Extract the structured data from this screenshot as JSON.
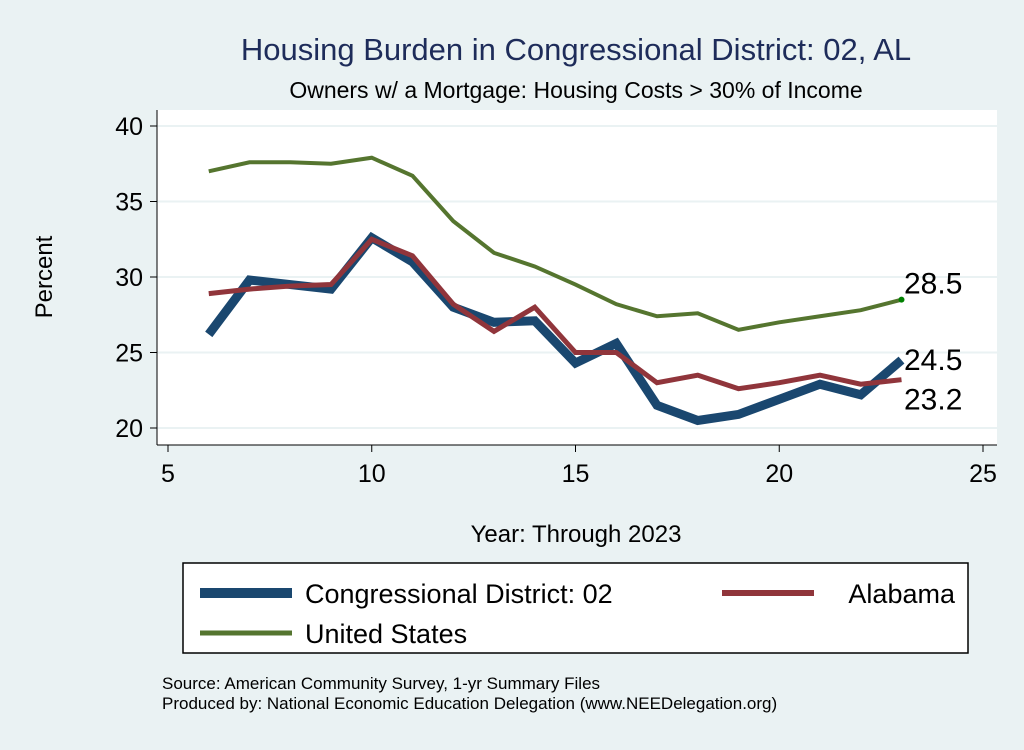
{
  "chart_data": {
    "type": "line",
    "title": "Housing Burden in Congressional District:  02, AL",
    "subtitle": "Owners w/ a Mortgage: Housing Costs > 30% of Income",
    "xlabel": "Year: Through 2023",
    "ylabel": "Percent",
    "xlim": [
      5,
      25
    ],
    "ylim": [
      20,
      40
    ],
    "xticks": [
      "5",
      "10",
      "15",
      "20",
      "25"
    ],
    "yticks": [
      "20",
      "25",
      "30",
      "35",
      "40"
    ],
    "grid": true,
    "x": [
      6,
      7,
      8,
      9,
      10,
      11,
      12,
      13,
      14,
      15,
      16,
      17,
      18,
      19,
      20,
      21,
      22,
      23
    ],
    "series": [
      {
        "name": "Congressional District:  02",
        "color": "#1a476f",
        "end_label": "24.5",
        "values": [
          26.2,
          29.8,
          29.5,
          29.2,
          32.6,
          31.0,
          28.0,
          27.0,
          27.1,
          24.3,
          25.6,
          21.5,
          20.5,
          20.9,
          21.9,
          22.9,
          22.2,
          24.5
        ]
      },
      {
        "name": "Alabama",
        "color": "#90353b",
        "end_label": "23.2",
        "values": [
          28.9,
          29.2,
          29.4,
          29.5,
          32.5,
          31.4,
          28.2,
          26.4,
          28.0,
          25.0,
          25.0,
          23.0,
          23.5,
          22.6,
          23.0,
          23.5,
          22.9,
          23.2
        ]
      },
      {
        "name": "United States",
        "color": "#55752f",
        "end_label": "28.5",
        "values": [
          37.0,
          37.6,
          37.6,
          37.5,
          37.9,
          36.7,
          33.7,
          31.6,
          30.7,
          29.5,
          28.2,
          27.4,
          27.6,
          26.5,
          27.0,
          27.4,
          27.8,
          28.5
        ]
      }
    ],
    "legend_placement": "bottom",
    "notes": [
      "Source: American Community Survey, 1-yr Summary Files",
      "Produced by: National Economic Education Delegation (www.NEEDelegation.org)"
    ]
  }
}
